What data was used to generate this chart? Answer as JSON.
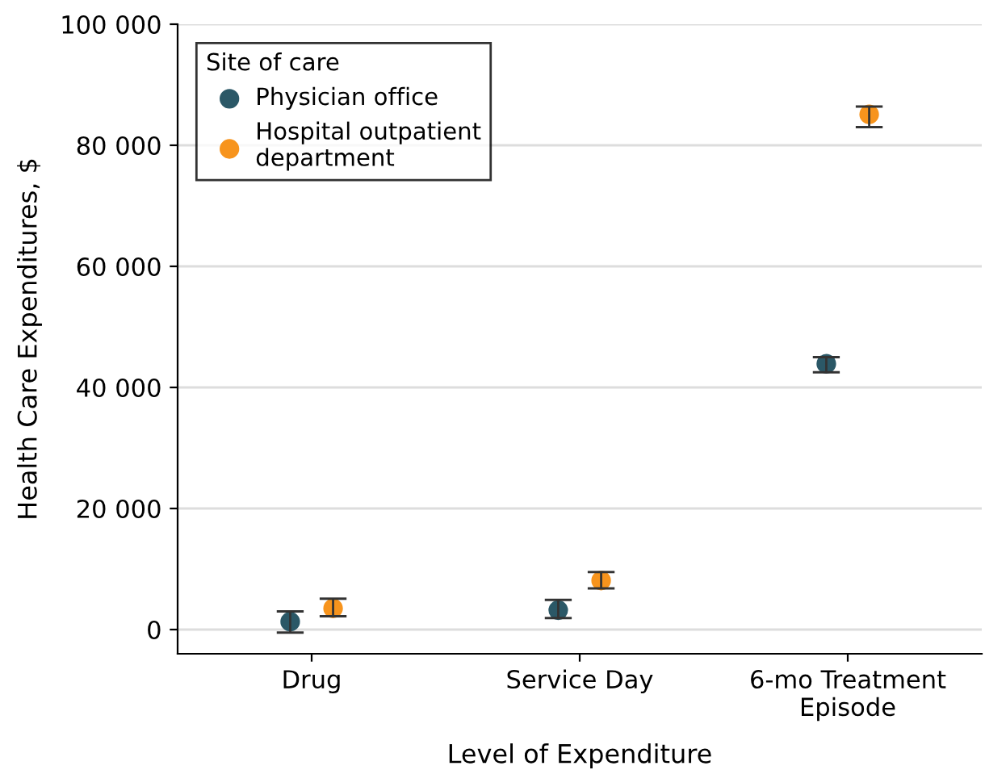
{
  "chart_data": {
    "type": "scatter",
    "xlabel": "Level of Expenditure",
    "ylabel": "Health Care Expenditures, $",
    "legend_title": "Site of care",
    "categories": [
      "Drug",
      "Service Day",
      "6-mo Treatment\nEpisode"
    ],
    "series": [
      {
        "name": "Physician office",
        "color": "#2b5867",
        "values": [
          1300,
          3200,
          43900
        ],
        "errors": [
          [
            -500,
            3000
          ],
          [
            1900,
            4900
          ],
          [
            42500,
            45000
          ]
        ]
      },
      {
        "name": "Hospital outpatient\ndepartment",
        "color": "#f7941d",
        "values": [
          3500,
          8100,
          85100
        ],
        "errors": [
          [
            2200,
            5100
          ],
          [
            6800,
            9500
          ],
          [
            83000,
            86400
          ]
        ]
      }
    ],
    "ylim": [
      -4000,
      100000
    ],
    "yticks": [
      0,
      {
        "value": 20000,
        "label": "20 000"
      },
      {
        "value": 40000,
        "label": "40 000"
      },
      {
        "value": 60000,
        "label": "60 000"
      },
      {
        "value": 80000,
        "label": "80 000"
      },
      {
        "value": 100000,
        "label": "100 000"
      }
    ],
    "grid": "y",
    "legend": "top left",
    "marker": "circle"
  }
}
